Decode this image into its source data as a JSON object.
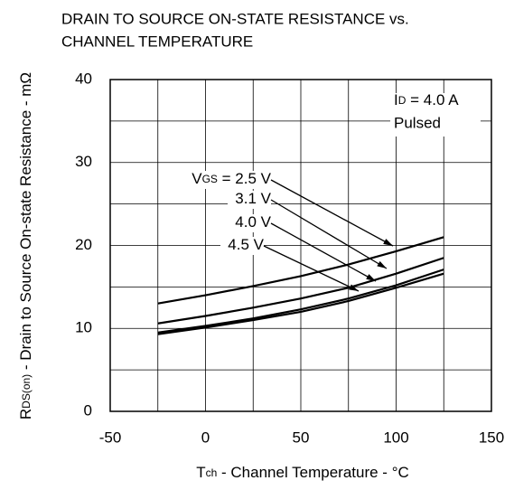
{
  "chart_data": {
    "type": "line",
    "title": [
      "DRAIN TO SOURCE ON-STATE RESISTANCE vs.",
      "CHANNEL TEMPERATURE"
    ],
    "xlabel": {
      "main": "T",
      "sub": "ch",
      "rest": " - Channel Temperature - °C"
    },
    "ylabel": {
      "main": "R",
      "sub": "DS(on)",
      "rest": " - Drain to Source On-state Resistance - mΩ"
    },
    "condition": {
      "main": "I",
      "sub": "D",
      "rest": " = 4.0 A",
      "line2": "Pulsed"
    },
    "series_prefix": {
      "main": "V",
      "sub": "GS",
      "rest": " = "
    },
    "x": [
      -25,
      0,
      25,
      50,
      75,
      100,
      125
    ],
    "series": [
      {
        "name": "2.5 V",
        "color": "#000000",
        "values": [
          13.0,
          14.0,
          15.1,
          16.3,
          17.7,
          19.3,
          21.0
        ]
      },
      {
        "name": "3.1 V",
        "color": "#000000",
        "values": [
          10.6,
          11.5,
          12.5,
          13.6,
          14.9,
          16.6,
          18.5
        ]
      },
      {
        "name": "4.0 V",
        "color": "#000000",
        "values": [
          9.5,
          10.3,
          11.2,
          12.3,
          13.6,
          15.2,
          17.1
        ]
      },
      {
        "name": "4.5 V",
        "color": "#000000",
        "values": [
          9.3,
          10.1,
          11.0,
          12.0,
          13.3,
          14.9,
          16.6
        ]
      }
    ],
    "xlim": [
      -50,
      150
    ],
    "xticks": [
      -50,
      0,
      50,
      100,
      150
    ],
    "ylim": [
      0,
      40
    ],
    "yticks": [
      0,
      10,
      20,
      30,
      40
    ],
    "xgrid": [
      -25,
      0,
      25,
      50,
      75,
      100,
      125
    ],
    "ygrid": [
      5,
      10,
      15,
      20,
      25,
      30,
      35
    ],
    "grid": true
  }
}
